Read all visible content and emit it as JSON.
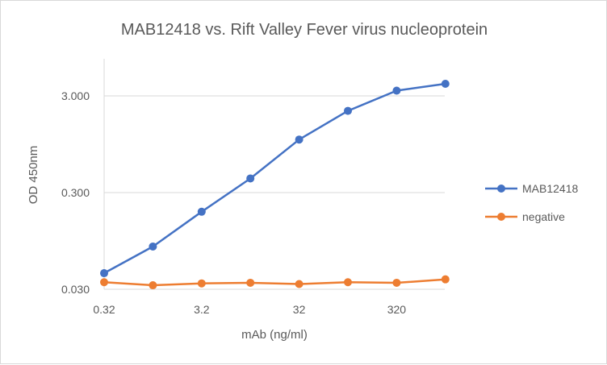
{
  "chart_data": {
    "type": "line",
    "title": "MAB12418 vs. Rift Valley Fever virus nucleoprotein",
    "xlabel": "mAb (ng/ml)",
    "ylabel": "OD 450nm",
    "x_scale": "log",
    "y_scale": "log",
    "x_tick_labels": [
      "0.32",
      "3.2",
      "32",
      "320"
    ],
    "y_tick_labels": [
      "0.030",
      "0.300",
      "3.000"
    ],
    "ylim": [
      0.03,
      5.5
    ],
    "xlim": [
      0.32,
      3200
    ],
    "grid": "horizontal",
    "legend_position": "right",
    "x": [
      0.32,
      1,
      3.2,
      10,
      32,
      100,
      320,
      1000
    ],
    "series": [
      {
        "name": "MAB12418",
        "color": "#4472c4",
        "values": [
          0.044,
          0.083,
          0.19,
          0.42,
          1.06,
          2.1,
          3.4,
          4.0
        ]
      },
      {
        "name": "negative",
        "color": "#ed7d31",
        "values": [
          0.0355,
          0.033,
          0.0345,
          0.035,
          0.034,
          0.0355,
          0.035,
          0.038
        ]
      }
    ]
  }
}
